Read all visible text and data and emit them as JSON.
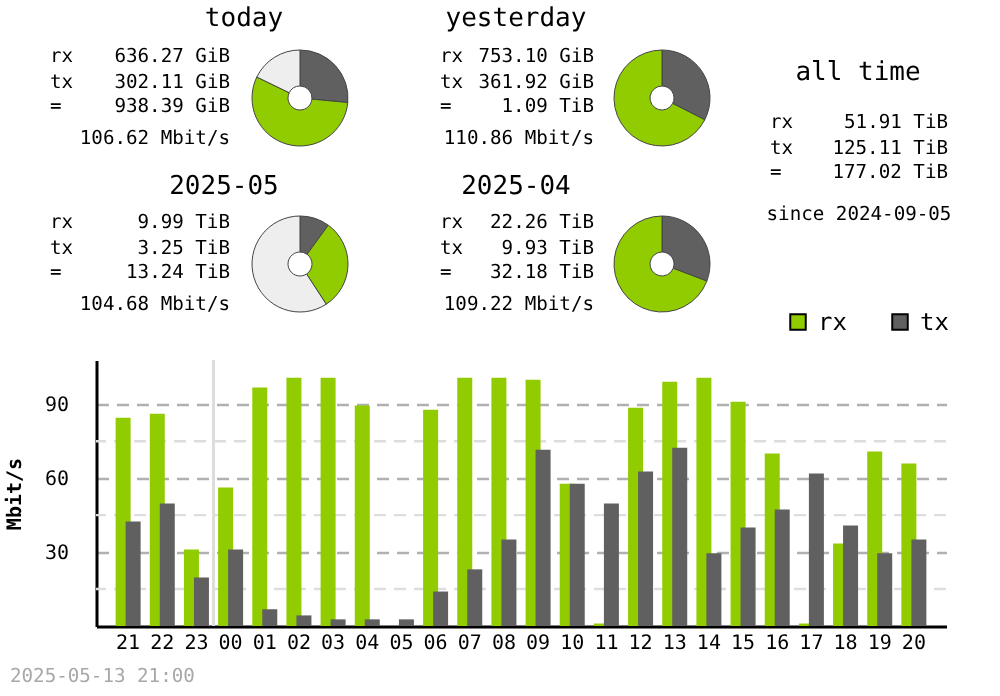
{
  "chart_data": [
    {
      "type": "donut",
      "title": "today",
      "categories": [
        null,
        null,
        null
      ],
      "values": [
        26.5,
        55.7,
        17.8
      ],
      "colors": [
        "#606060",
        "#91cc00",
        "#eeeeee"
      ],
      "annotations": [
        "rx 636.27 GiB",
        "tx 302.11 GiB",
        "= 938.39 GiB",
        "106.62 Mbit/s"
      ]
    },
    {
      "type": "donut",
      "title": "yesterday",
      "categories": [
        null,
        null
      ],
      "values": [
        32.5,
        67.5
      ],
      "colors": [
        "#606060",
        "#91cc00"
      ],
      "annotations": [
        "rx 753.10 GiB",
        "tx 361.92 GiB",
        "= 1.09 TiB",
        "110.86 Mbit/s"
      ]
    },
    {
      "type": "other",
      "title": "all time",
      "annotations": [
        "rx 51.91 TiB",
        "tx 125.11 TiB",
        "= 177.02 TiB",
        "since 2024-09-05"
      ]
    },
    {
      "type": "donut",
      "title": "2025-05",
      "categories": [
        null,
        null,
        null
      ],
      "values": [
        10.0,
        30.8,
        59.2
      ],
      "colors": [
        "#606060",
        "#91cc00",
        "#eeeeee"
      ],
      "annotations": [
        "rx 9.99 TiB",
        "tx 3.25 TiB",
        "= 13.24 TiB",
        "104.68 Mbit/s"
      ]
    },
    {
      "type": "donut",
      "title": "2025-04",
      "categories": [
        null,
        null
      ],
      "values": [
        30.8,
        69.2
      ],
      "colors": [
        "#606060",
        "#91cc00"
      ],
      "annotations": [
        "rx 22.26 TiB",
        "tx 9.93 TiB",
        "= 32.18 TiB",
        "109.22 Mbit/s"
      ]
    },
    {
      "type": "bar",
      "ylabel": "Mbit/s",
      "categories": [
        "21",
        "22",
        "23",
        "00",
        "01",
        "02",
        "03",
        "04",
        "05",
        "06",
        "07",
        "08",
        "09",
        "10",
        "11",
        "12",
        "13",
        "14",
        "15",
        "16",
        "17",
        "18",
        "19",
        "20"
      ],
      "series": [
        {
          "name": "rx",
          "color": "#91cc00",
          "values": [
            84.6,
            86.2,
            31.1,
            56.2,
            96.8,
            100.8,
            100.8,
            89.5,
            0,
            87.8,
            100.8,
            100.8,
            100,
            57.8,
            1,
            88.6,
            99.2,
            100.8,
            91,
            70,
            1,
            33.5,
            70.8,
            66
          ]
        },
        {
          "name": "tx",
          "color": "#606060",
          "values": [
            42.4,
            49.7,
            19.7,
            31.1,
            6.8,
            4.3,
            2.7,
            2.7,
            2.7,
            14,
            23,
            35.1,
            71.6,
            57.8,
            49.7,
            62.7,
            72.4,
            29.5,
            40,
            47.3,
            61.9,
            40.8,
            29.5,
            35.1
          ]
        }
      ],
      "ylim": [
        0,
        108
      ],
      "yticks": [
        {
          "value": 15,
          "label": null
        },
        30,
        {
          "value": 45,
          "label": null
        },
        60,
        {
          "value": 75,
          "label": null
        },
        90
      ],
      "grid": "y",
      "legend": "top right",
      "ref_lines": [
        {
          "axis": "x",
          "value": "00",
          "color": "#dddddd"
        }
      ],
      "annotations": [
        "2025-05-13 21:00"
      ]
    }
  ]
}
